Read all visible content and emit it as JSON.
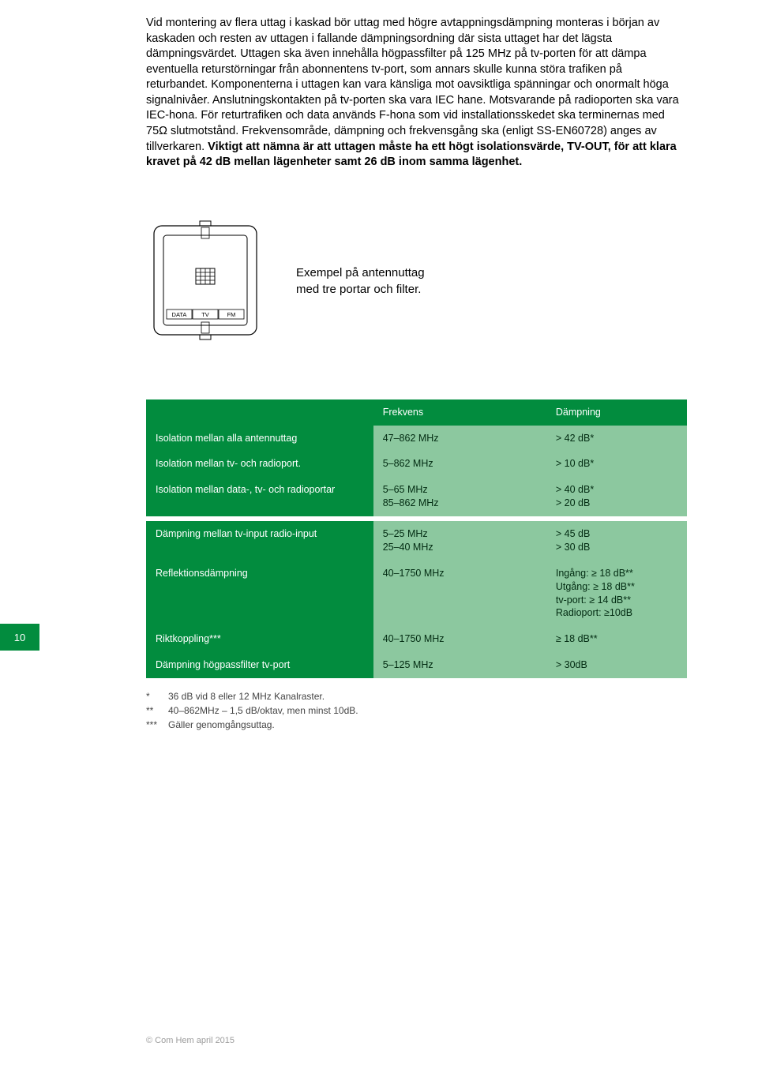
{
  "page_number": "10",
  "body_text_normal": "Vid montering av flera uttag i kaskad bör uttag med högre avtappningsdämpning monteras i början av kaskaden och resten av uttagen i fallande dämpningsordning där sista uttaget har det lägsta dämpningsvärdet. Uttagen ska även innehålla högpassfilter på 125 MHz på tv-porten för att dämpa eventuella returstörningar från abonnentens tv-port, som annars skulle kunna störa trafiken på returbandet. Komponenterna i uttagen kan vara känsliga mot oavsiktliga spänningar och onormalt höga signalnivåer. Anslutningskontakten på tv-porten ska vara IEC hane. Motsvarande på radioporten ska vara IEC-hona. För returtrafiken och data används F-hona som vid installations­skedet ska terminernas med 75Ω slutmotstånd. Frekvensområde, dämpning och frekvensgång ska (enligt SS-EN60728) anges av tillverkaren. ",
  "body_text_bold": "Viktigt att nämna är att uttagen måste ha ett högt isolationsvärde, TV-OUT, för att klara kravet på 42 dB mellan lägenheter samt 26 dB inom samma lägenhet.",
  "caption_line1": "Exempel på antennuttag",
  "caption_line2": "med tre portar och filter.",
  "outlet_labels": {
    "data": "DATA",
    "tv": "TV",
    "fm": "FM"
  },
  "table": {
    "colors": {
      "header_bg": "#028c3e",
      "dark_green": "#028c3e",
      "light_green": "#8cc89f",
      "text_on_dark": "#ffffff",
      "text_on_light": "#022b12"
    },
    "header": {
      "c1": "",
      "c2": "Frekvens",
      "c3": "Dämpning"
    },
    "section1": [
      {
        "c1": "Isolation mellan alla antennuttag",
        "c2": "47–862 MHz",
        "c3": "> 42 dB*"
      },
      {
        "c1": "Isolation mellan tv- och radioport.",
        "c2": "5–862 MHz",
        "c3": "> 10 dB*"
      },
      {
        "c1": "Isolation mellan data-, tv- och radioportar",
        "c2": "5–65 MHz\n85–862 MHz",
        "c3": "> 40 dB*\n> 20 dB"
      }
    ],
    "section2": [
      {
        "c1": "Dämpning mellan tv-input radio-input",
        "c2": "5–25 MHz\n25–40 MHz",
        "c3": "> 45 dB\n> 30 dB"
      },
      {
        "c1": "Reflektionsdämpning",
        "c2": "40–1750 MHz",
        "c3": "Ingång: ≥ 18 dB**\nUtgång: ≥ 18 dB**\ntv-port: ≥ 14 dB**\nRadioport: ≥10dB"
      },
      {
        "c1": "Riktkoppling***",
        "c2": "40–1750 MHz",
        "c3": "≥ 18 dB**"
      },
      {
        "c1": "Dämpning högpassfilter tv-port",
        "c2": "5–125 MHz",
        "c3": "> 30dB"
      }
    ]
  },
  "footnotes": [
    {
      "mark": "*",
      "text": "36 dB vid 8 eller 12 MHz Kanalraster."
    },
    {
      "mark": "**",
      "text": "40–862MHz – 1,5 dB/oktav, men minst 10dB."
    },
    {
      "mark": "***",
      "text": "Gäller genomgångsuttag."
    }
  ],
  "footer": "© Com Hem april 2015"
}
